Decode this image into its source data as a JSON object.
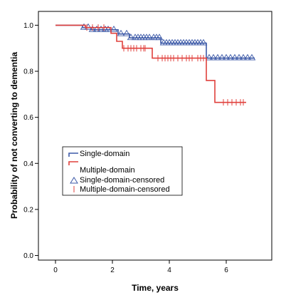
{
  "chart_data": {
    "type": "line",
    "subtype": "kaplan-meier",
    "xlabel": "Time, years",
    "ylabel": "Probability of not converting to dementia",
    "xlim": [
      -0.6,
      7.6
    ],
    "ylim": [
      -0.02,
      1.06
    ],
    "xticks": [
      "0",
      "2",
      "4",
      "6"
    ],
    "yticks": [
      "0.0",
      "0.2",
      "0.4",
      "0.6",
      "0.8",
      "1.0"
    ],
    "grid": false,
    "legend_position": "middle-left",
    "legend": [
      "Single-domain",
      "Multiple-domain",
      "Single-domain-censored",
      "Multiple-domain-censored"
    ],
    "series": [
      {
        "name": "Single-domain",
        "color": "#3d5aa8",
        "steps": [
          [
            0,
            1.0
          ],
          [
            0.95,
            0.99
          ],
          [
            1.25,
            0.98
          ],
          [
            2.2,
            0.962
          ],
          [
            2.6,
            0.945
          ],
          [
            3.7,
            0.922
          ],
          [
            5.3,
            0.857
          ],
          [
            7.0,
            0.857
          ]
        ],
        "censored": [
          1.0,
          1.15,
          1.3,
          1.45,
          1.6,
          1.75,
          1.85,
          2.05,
          2.3,
          2.5,
          2.65,
          2.8,
          2.9,
          3.0,
          3.1,
          3.2,
          3.3,
          3.45,
          3.55,
          3.65,
          3.8,
          3.9,
          4.0,
          4.1,
          4.2,
          4.3,
          4.4,
          4.5,
          4.6,
          4.7,
          4.8,
          4.9,
          5.0,
          5.1,
          5.2,
          5.4,
          5.55,
          5.7,
          5.85,
          6.0,
          6.15,
          6.3,
          6.45,
          6.6,
          6.75,
          6.9
        ]
      },
      {
        "name": "Multiple-domain",
        "color": "#e0403c",
        "steps": [
          [
            0,
            1.0
          ],
          [
            1.05,
            0.99
          ],
          [
            1.95,
            0.965
          ],
          [
            2.15,
            0.93
          ],
          [
            2.35,
            0.9
          ],
          [
            3.4,
            0.857
          ],
          [
            5.3,
            0.76
          ],
          [
            5.6,
            0.665
          ],
          [
            6.7,
            0.665
          ]
        ],
        "censored": [
          1.1,
          1.3,
          1.5,
          1.7,
          2.4,
          2.55,
          2.65,
          2.75,
          2.85,
          3.0,
          3.1,
          3.15,
          3.6,
          3.75,
          3.85,
          3.95,
          4.05,
          4.15,
          4.3,
          4.45,
          4.6,
          4.7,
          4.8,
          5.0,
          5.1,
          5.2,
          5.9,
          6.05,
          6.2,
          6.35,
          6.5,
          6.6
        ]
      }
    ]
  }
}
